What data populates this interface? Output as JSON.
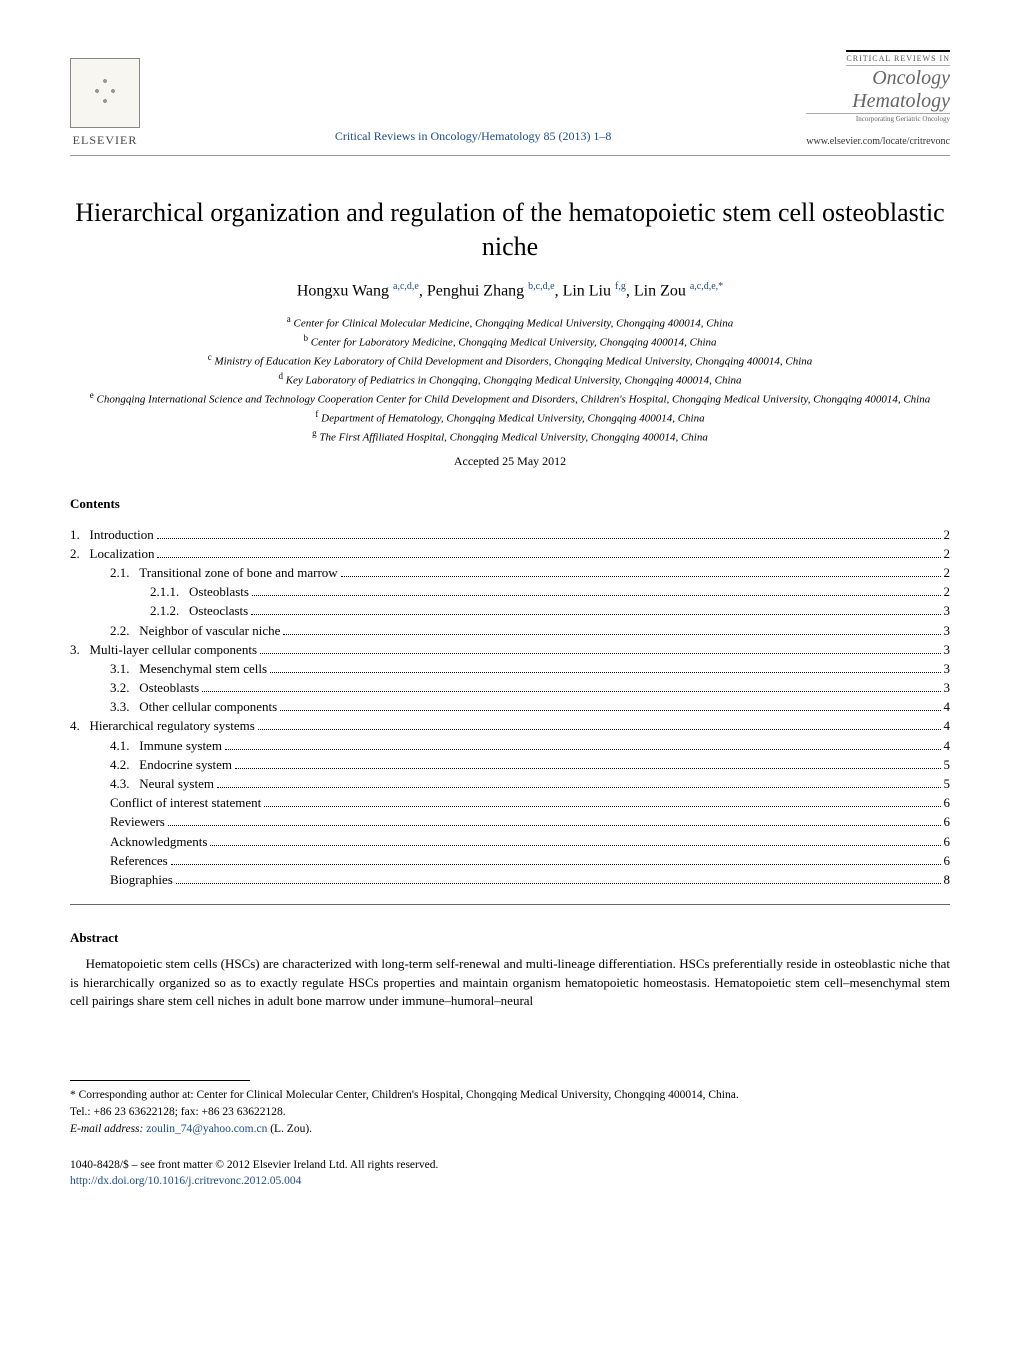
{
  "header": {
    "publisher_label": "ELSEVIER",
    "journal_ref": "Critical Reviews in Oncology/Hematology 85 (2013) 1–8",
    "cover_small": "CRITICAL REVIEWS IN",
    "cover_title_1": "Oncology",
    "cover_title_2": "Hematology",
    "cover_sub": "Incorporating Geriatric Oncology",
    "cover_url": "www.elsevier.com/locate/critrevonc"
  },
  "title": "Hierarchical organization and regulation of the hematopoietic stem cell osteoblastic niche",
  "authors": [
    {
      "name": "Hongxu Wang",
      "aff": "a,c,d,e"
    },
    {
      "name": "Penghui Zhang",
      "aff": "b,c,d,e"
    },
    {
      "name": "Lin Liu",
      "aff": "f,g"
    },
    {
      "name": "Lin Zou",
      "aff": "a,c,d,e,*"
    }
  ],
  "affiliations": [
    {
      "key": "a",
      "text": "Center for Clinical Molecular Medicine, Chongqing Medical University, Chongqing 400014, China"
    },
    {
      "key": "b",
      "text": "Center for Laboratory Medicine, Chongqing Medical University, Chongqing 400014, China"
    },
    {
      "key": "c",
      "text": "Ministry of Education Key Laboratory of Child Development and Disorders, Chongqing Medical University, Chongqing 400014, China"
    },
    {
      "key": "d",
      "text": "Key Laboratory of Pediatrics in Chongqing, Chongqing Medical University, Chongqing 400014, China"
    },
    {
      "key": "e",
      "text": "Chongqing International Science and Technology Cooperation Center for Child Development and Disorders, Children's Hospital, Chongqing Medical University, Chongqing 400014, China"
    },
    {
      "key": "f",
      "text": "Department of Hematology, Chongqing Medical University, Chongqing 400014, China"
    },
    {
      "key": "g",
      "text": "The First Affiliated Hospital, Chongqing Medical University, Chongqing 400014, China"
    }
  ],
  "accepted": "Accepted 25 May 2012",
  "contents_heading": "Contents",
  "toc": [
    {
      "num": "1.",
      "title": "Introduction",
      "page": "2",
      "indent": 0
    },
    {
      "num": "2.",
      "title": "Localization",
      "page": "2",
      "indent": 0
    },
    {
      "num": "2.1.",
      "title": "Transitional zone of bone and marrow",
      "page": "2",
      "indent": 1
    },
    {
      "num": "2.1.1.",
      "title": "Osteoblasts",
      "page": "2",
      "indent": 2
    },
    {
      "num": "2.1.2.",
      "title": "Osteoclasts",
      "page": "3",
      "indent": 2
    },
    {
      "num": "2.2.",
      "title": "Neighbor of vascular niche",
      "page": "3",
      "indent": 1
    },
    {
      "num": "3.",
      "title": "Multi-layer cellular components",
      "page": "3",
      "indent": 0
    },
    {
      "num": "3.1.",
      "title": "Mesenchymal stem cells",
      "page": "3",
      "indent": 1
    },
    {
      "num": "3.2.",
      "title": "Osteoblasts",
      "page": "3",
      "indent": 1
    },
    {
      "num": "3.3.",
      "title": "Other cellular components",
      "page": "4",
      "indent": 1
    },
    {
      "num": "4.",
      "title": "Hierarchical regulatory systems",
      "page": "4",
      "indent": 0
    },
    {
      "num": "4.1.",
      "title": "Immune system",
      "page": "4",
      "indent": 1
    },
    {
      "num": "4.2.",
      "title": "Endocrine system",
      "page": "5",
      "indent": 1
    },
    {
      "num": "4.3.",
      "title": "Neural system",
      "page": "5",
      "indent": 1
    },
    {
      "num": "",
      "title": "Conflict of interest statement",
      "page": "6",
      "indent": 1
    },
    {
      "num": "",
      "title": "Reviewers",
      "page": "6",
      "indent": 1
    },
    {
      "num": "",
      "title": "Acknowledgments",
      "page": "6",
      "indent": 1
    },
    {
      "num": "",
      "title": "References",
      "page": "6",
      "indent": 1
    },
    {
      "num": "",
      "title": "Biographies",
      "page": "8",
      "indent": 1
    }
  ],
  "abstract_heading": "Abstract",
  "abstract_body": "Hematopoietic stem cells (HSCs) are characterized with long-term self-renewal and multi-lineage differentiation. HSCs preferentially reside in osteoblastic niche that is hierarchically organized so as to exactly regulate HSCs properties and maintain organism hematopoietic homeostasis. Hematopoietic stem cell–mesenchymal stem cell pairings share stem cell niches in adult bone marrow under immune–humoral–neural",
  "footnote": {
    "corr_label": "* Corresponding author at: Center for Clinical Molecular Center, Children's Hospital, Chongqing Medical University, Chongqing 400014, China.",
    "tel": "Tel.: +86 23 63622128; fax: +86 23 63622128.",
    "email_label": "E-mail address:",
    "email": "zoulin_74@yahoo.com.cn",
    "email_suffix": "(L. Zou)."
  },
  "footline": {
    "issn": "1040-8428/$ – see front matter © 2012 Elsevier Ireland Ltd. All rights reserved.",
    "doi": "http://dx.doi.org/10.1016/j.critrevonc.2012.05.004"
  },
  "colors": {
    "link": "#1a4b8c",
    "text": "#000000",
    "rule": "#666666"
  }
}
